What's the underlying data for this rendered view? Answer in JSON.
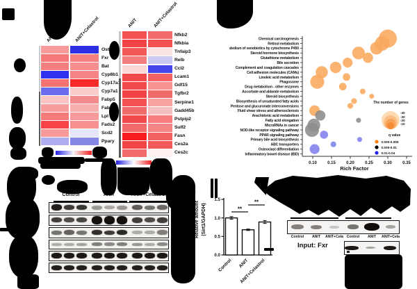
{
  "chart_data": [
    {
      "id": "heatmap_left",
      "type": "heatmap",
      "columns": [
        "ANIT",
        "ANIT+Celastrol"
      ],
      "rows": [
        "Ostβ",
        "Fxr",
        "Bat",
        "Cyp8b1",
        "Cyp17a1",
        "Cyp7a1",
        "Fabp5",
        "Fabp2",
        "Lpl",
        "Fads2",
        "Scd2",
        "Ppary"
      ],
      "cell_colors": [
        [
          "#F99B9B",
          "#2E2EE5"
        ],
        [
          "#F57878",
          "#F58080"
        ],
        [
          "#F57F7F",
          "#F78F8F"
        ],
        [
          "#3030EF",
          "#F58484"
        ],
        [
          "#F57272",
          "#F92A2A"
        ],
        [
          "#6B6BF0",
          "#FBCCCC"
        ],
        [
          "#FBC4C4",
          "#F58A8A"
        ],
        [
          "#F89D9D",
          "#F9AEAE"
        ],
        [
          "#F57A7A",
          "#F89A9A"
        ],
        [
          "#F84444",
          "#F89090"
        ],
        [
          "#F89A9A",
          "#E6E6FA"
        ],
        [
          "#ADADF0",
          "#8787E8"
        ]
      ],
      "colorbar_left_gradient": [
        "#2222E0",
        "#EEEEFB"
      ],
      "colorbar_right_gradient": [
        "#FBEEEE",
        "#EE2222"
      ]
    },
    {
      "id": "heatmap_right",
      "type": "heatmap",
      "columns": [
        "ANIT",
        "ANIT+Celastrol"
      ],
      "rows": [
        "Nfkb2",
        "Nfkbia",
        "Tnfaip3",
        "Relb",
        "Ccl2",
        "Lcam1",
        "Gdf15",
        "Tgfbr2",
        "Serpine1",
        "Gadd45b",
        "Pstpip2",
        "Sulf2",
        "Fasn",
        "Ces2a",
        "Ces2c"
      ],
      "cell_colors": [
        [
          "#F25252",
          "#F26B6B"
        ],
        [
          "#F24444",
          "#F25252"
        ],
        [
          "#F25A5A",
          "#FBE3E3"
        ],
        [
          "#F57D7D",
          "#C9C9F2"
        ],
        [
          "#FBD6D6",
          "#4444E8"
        ],
        [
          "#F24A4A",
          "#F26262"
        ],
        [
          "#F24A4A",
          "#F79292"
        ],
        [
          "#F24444",
          "#F26B6B"
        ],
        [
          "#F25252",
          "#F8A2A2"
        ],
        [
          "#F26B6B",
          "#FAC0C0"
        ],
        [
          "#F24A4A",
          "#F57D7D"
        ],
        [
          "#F26B6B",
          "#F58484"
        ],
        [
          "#F81C1C",
          "#F26262"
        ],
        [
          "#F24444",
          "#F25A5A"
        ],
        [
          "#F26B6B",
          "#FDF0F0"
        ]
      ],
      "colorbar_gradient": [
        "#2222E0",
        "#FFFFFF",
        "#EE2222"
      ]
    },
    {
      "id": "pathway_enrichment_bubble",
      "type": "scatter",
      "xlabel": "Rich Factor",
      "xticks": [
        "0.10",
        "0.15",
        "0.20",
        "0.25",
        "0.30",
        "0.35"
      ],
      "xlim": [
        0.075,
        0.365
      ],
      "size_legend": {
        "title": "The number of genes",
        "sizes": [
          "40",
          "30",
          "20",
          "10"
        ]
      },
      "color_legend": {
        "title": "q value",
        "bins": [
          {
            "label": "0.000-0.005",
            "color": "#FF7F0E"
          },
          {
            "label": "0.005-0.01",
            "color": "#000000"
          },
          {
            "label": "0.01-0.04",
            "color": "#2222EE"
          }
        ]
      },
      "bubble_colors": {
        "orange": "#F9A95D",
        "gray": "#8C8C8C",
        "blue": "#8080EE"
      },
      "points": [
        {
          "pathway": "Chemical carcinogenesis",
          "rich_factor": 0.3,
          "genes": 40,
          "q": "orange"
        },
        {
          "pathway": "Retinol metabolism",
          "rich_factor": 0.285,
          "genes": 26,
          "q": "orange"
        },
        {
          "pathway": "Metabolism of xenobiotics by cytochrome P450",
          "rich_factor": 0.27,
          "genes": 20,
          "q": "orange"
        },
        {
          "pathway": "Steroid hormone biosynthesis",
          "rich_factor": 0.222,
          "genes": 20,
          "q": "orange"
        },
        {
          "pathway": "Glutathione metabolism",
          "rich_factor": 0.247,
          "genes": 13,
          "q": "orange"
        },
        {
          "pathway": "Bile secretion",
          "rich_factor": 0.193,
          "genes": 12,
          "q": "orange"
        },
        {
          "pathway": "Complement and coagulation cascades",
          "rich_factor": 0.161,
          "genes": 16,
          "q": "orange"
        },
        {
          "pathway": "Cell adhesion molecules (CAMs)",
          "rich_factor": 0.124,
          "genes": 18,
          "q": "orange"
        },
        {
          "pathway": "Linoleic acid metabolism",
          "rich_factor": 0.19,
          "genes": 7,
          "q": "orange"
        },
        {
          "pathway": "Phagosome",
          "rich_factor": 0.112,
          "genes": 24,
          "q": "orange"
        },
        {
          "pathway": "Drug metabolism - other enzymes",
          "rich_factor": 0.18,
          "genes": 7,
          "q": "orange"
        },
        {
          "pathway": "Ascorbate and aldarate metabolism",
          "rich_factor": 0.233,
          "genes": 4,
          "q": "orange"
        },
        {
          "pathway": "Steroid biosynthesis",
          "rich_factor": 0.257,
          "genes": 3,
          "q": "orange"
        },
        {
          "pathway": "Biosynthesis of unsaturated fatty acids",
          "rich_factor": 0.21,
          "genes": 4,
          "q": "orange"
        },
        {
          "pathway": "Pentose and glucuronate interconversions",
          "rich_factor": 0.2,
          "genes": 4,
          "q": "orange"
        },
        {
          "pathway": "Fluid shear stress and atherosclerosis",
          "rich_factor": 0.105,
          "genes": 14,
          "q": "orange"
        },
        {
          "pathway": "Arachidonic acid metabolism",
          "rich_factor": 0.12,
          "genes": 13,
          "q": "gray"
        },
        {
          "pathway": "Fatty acid elongation",
          "rich_factor": 0.222,
          "genes": 3,
          "q": "gray"
        },
        {
          "pathway": "MicroRNAs in cancer",
          "rich_factor": 0.103,
          "genes": 20,
          "q": "gray"
        },
        {
          "pathway": "NOD-like receptor signaling pathway",
          "rich_factor": 0.098,
          "genes": 24,
          "q": "gray"
        },
        {
          "pathway": "PPAR signaling pathway",
          "rich_factor": 0.13,
          "genes": 8,
          "q": "blue"
        },
        {
          "pathway": "Primary bile acid biosynthesis",
          "rich_factor": 0.225,
          "genes": 3,
          "q": "blue"
        },
        {
          "pathway": "ABC transporters",
          "rich_factor": 0.155,
          "genes": 4,
          "q": "blue"
        },
        {
          "pathway": "Osteoclast differentiation",
          "rich_factor": 0.105,
          "genes": 12,
          "q": "blue"
        },
        {
          "pathway": "Inflammatory bowel disease (IBD)",
          "rich_factor": null,
          "genes": null,
          "q": null
        }
      ]
    },
    {
      "id": "sirt1_quantification",
      "type": "bar",
      "ylabel_line1": "Relative amount",
      "ylabel_line2": "(Sirt1/GAPDH)",
      "categories": [
        "Control",
        "ANIT",
        "ANIT+Celastrol"
      ],
      "values": [
        1.0,
        0.68,
        0.89
      ],
      "errors": [
        0.035,
        0.02,
        0.04
      ],
      "yticks": [
        "0.0",
        "0.5",
        "1.0",
        "1.5"
      ],
      "ylim": [
        0,
        1.5
      ],
      "significance": [
        {
          "pair": [
            0,
            1
          ],
          "label": "**"
        },
        {
          "pair": [
            1,
            2
          ],
          "label": "**"
        }
      ]
    }
  ],
  "western_blot_left": {
    "group_labels": [
      "Control",
      "ANIT",
      "ANIT+Celastrol"
    ],
    "lanes_per_group": 3,
    "strips": [
      {
        "band_intensities": [
          0.92,
          0.8,
          0.82,
          0.38,
          0.32,
          0.4,
          0.65,
          0.55,
          0.6
        ]
      },
      {
        "band_intensities": [
          0.78,
          0.72,
          0.75,
          0.98,
          0.98,
          0.98,
          0.78,
          0.72,
          0.78
        ]
      },
      {
        "band_intensities": [
          0.55,
          0.62,
          0.55,
          0.85,
          0.8,
          0.88,
          0.3,
          0.3,
          0.5
        ]
      },
      {
        "band_intensities": [
          0.3,
          0.3,
          0.35,
          0.5,
          0.45,
          0.5,
          0.4,
          0.3,
          0.45
        ]
      },
      {
        "band_intensities": [
          0.95,
          0.95,
          0.95,
          0.95,
          0.95,
          0.95,
          0.95,
          0.95,
          0.95
        ]
      },
      {
        "band_intensities": [
          0.92,
          0.92,
          0.92,
          0.92,
          0.92,
          0.92,
          0.92,
          0.92,
          0.92
        ]
      }
    ]
  },
  "coip_panel": {
    "lane_labels": [
      "Control",
      "ANIT",
      "ANIT+Cela",
      "Control",
      "ANIT",
      "ANIT+Cela"
    ],
    "input_label": "Input: Fxr",
    "main_band_intensities": [
      0.5,
      0.5,
      0.2,
      0.55,
      1.0,
      0.35
    ],
    "input_band_intensities": [
      0.95,
      0.35,
      0.95
    ]
  }
}
